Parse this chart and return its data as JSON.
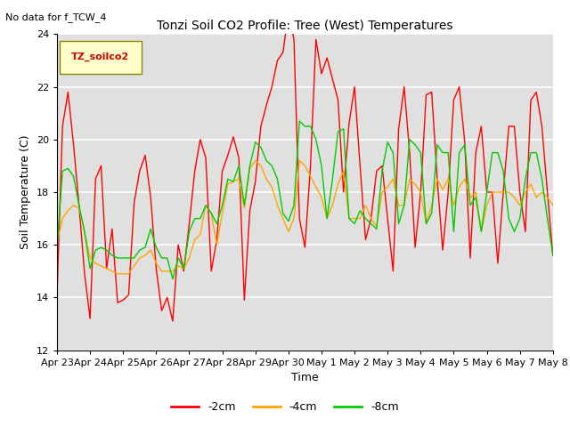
{
  "title": "Tonzi Soil CO2 Profile: Tree (West) Temperatures",
  "subtitle": "No data for f_TCW_4",
  "ylabel": "Soil Temperature (C)",
  "xlabel": "Time",
  "ylim": [
    12,
    24
  ],
  "legend_label": "TZ_soilco2",
  "series_labels": [
    "-2cm",
    "-4cm",
    "-8cm"
  ],
  "series_colors": [
    "#ff0000",
    "#ffa500",
    "#00cc00"
  ],
  "background_color": "#e0e0e0",
  "tick_labels": [
    "Apr 23",
    "Apr 24",
    "Apr 25",
    "Apr 26",
    "Apr 27",
    "Apr 28",
    "Apr 29",
    "Apr 30",
    "May 1",
    "May 2",
    "May 3",
    "May 4",
    "May 5",
    "May 6",
    "May 7",
    "May 8"
  ],
  "red_data": [
    14.1,
    20.5,
    21.8,
    19.8,
    17.5,
    14.9,
    13.2,
    18.5,
    19.0,
    15.1,
    16.6,
    13.8,
    13.9,
    14.1,
    17.6,
    18.8,
    19.4,
    17.8,
    15.1,
    13.5,
    14.0,
    13.1,
    16.0,
    15.0,
    16.8,
    18.8,
    20.0,
    19.3,
    15.0,
    16.2,
    18.8,
    19.4,
    20.1,
    19.3,
    13.9,
    17.3,
    18.4,
    20.5,
    21.3,
    22.0,
    23.0,
    23.3,
    24.8,
    23.8,
    17.0,
    15.9,
    19.0,
    23.8,
    22.5,
    23.1,
    22.3,
    21.5,
    18.0,
    20.6,
    22.0,
    19.0,
    16.2,
    17.0,
    18.8,
    19.0,
    17.0,
    15.0,
    20.4,
    22.0,
    19.5,
    15.9,
    18.0,
    21.7,
    21.8,
    18.5,
    15.8,
    18.0,
    21.5,
    22.0,
    19.9,
    15.5,
    19.5,
    20.5,
    18.0,
    18.0,
    15.3,
    18.0,
    20.5,
    20.5,
    18.0,
    16.5,
    21.5,
    21.8,
    20.5,
    18.0,
    15.6
  ],
  "orange_data": [
    16.1,
    17.0,
    17.3,
    17.5,
    17.4,
    16.5,
    15.5,
    15.3,
    15.2,
    15.1,
    15.0,
    14.9,
    14.9,
    14.9,
    15.2,
    15.5,
    15.6,
    15.8,
    15.3,
    15.0,
    15.0,
    15.0,
    15.2,
    15.1,
    15.5,
    16.2,
    16.4,
    17.5,
    17.2,
    16.0,
    17.2,
    18.3,
    18.4,
    18.5,
    17.4,
    18.9,
    19.2,
    19.0,
    18.5,
    18.2,
    17.5,
    17.0,
    16.5,
    17.0,
    19.2,
    19.0,
    18.6,
    18.2,
    17.8,
    17.0,
    17.5,
    18.3,
    18.8,
    17.0,
    17.0,
    17.0,
    17.5,
    17.0,
    16.7,
    18.0,
    18.2,
    18.5,
    17.5,
    17.5,
    18.5,
    18.3,
    18.0,
    16.8,
    17.5,
    18.5,
    18.1,
    18.5,
    17.5,
    18.2,
    18.5,
    17.8,
    18.0,
    16.5,
    17.5,
    18.0,
    18.0,
    18.0,
    18.0,
    17.8,
    17.5,
    18.0,
    18.3,
    17.8,
    18.0,
    17.8,
    17.5
  ],
  "green_data": [
    15.9,
    18.8,
    18.9,
    18.6,
    17.5,
    16.5,
    15.1,
    15.8,
    15.9,
    15.8,
    15.6,
    15.5,
    15.5,
    15.5,
    15.5,
    15.8,
    15.9,
    16.6,
    15.9,
    15.5,
    15.5,
    14.7,
    15.5,
    15.1,
    16.5,
    17.0,
    17.0,
    17.5,
    17.2,
    16.8,
    17.5,
    18.5,
    18.4,
    19.0,
    17.5,
    19.0,
    19.9,
    19.7,
    19.2,
    19.0,
    18.5,
    17.2,
    16.9,
    17.5,
    20.7,
    20.5,
    20.5,
    20.0,
    19.0,
    17.0,
    18.5,
    20.3,
    20.4,
    17.0,
    16.8,
    17.3,
    17.0,
    16.8,
    16.6,
    18.8,
    19.9,
    19.5,
    16.8,
    17.5,
    20.0,
    19.8,
    19.5,
    16.8,
    17.2,
    19.8,
    19.5,
    19.5,
    16.5,
    19.5,
    19.8,
    17.5,
    17.8,
    16.5,
    18.0,
    19.5,
    19.5,
    18.8,
    17.0,
    16.5,
    17.0,
    18.5,
    19.5,
    19.5,
    18.5,
    17.0,
    15.6
  ]
}
